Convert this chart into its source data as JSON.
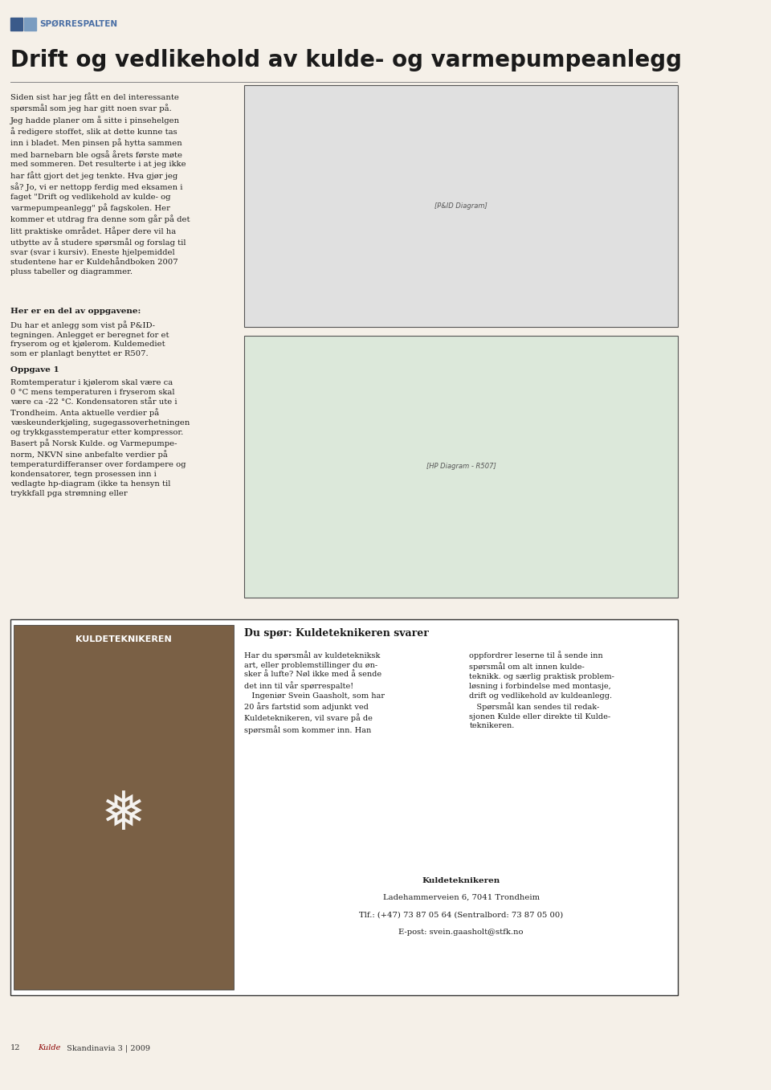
{
  "bg_color": "#f5f0e8",
  "page_width": 9.6,
  "page_height": 13.57,
  "header_icon_color1": "#3a5a8a",
  "header_icon_color2": "#7a9cc0",
  "header_text": "SPØRRESPALTEN",
  "header_text_color": "#4a6fa5",
  "title": "Drift og vedlikehold av kulde- og varmepumpeanlegg",
  "title_color": "#1a1a1a",
  "body_color": "#1a1a1a",
  "section_heading": "Her er en del av oppgavene:",
  "oppgave_heading": "Oppgave 1",
  "bottom_left_caption": "KULDETEKNIKEREN",
  "bottom_box_heading": "Du spør: Kuldeteknikeren svarer",
  "contact_name": "Kuldeteknikeren",
  "contact_address": "Ladehammerveien 6, 7041 Trondheim",
  "contact_phone": "Tlf.: (+47) 73 87 05 64 (Sentralbord: 73 87 05 00)",
  "contact_email": "E-post: svein.gaasholt@stfk.no",
  "footer_num": "12",
  "footer_mag": "Kulde",
  "footer_rest": " Skandinavia 3 | 2009"
}
